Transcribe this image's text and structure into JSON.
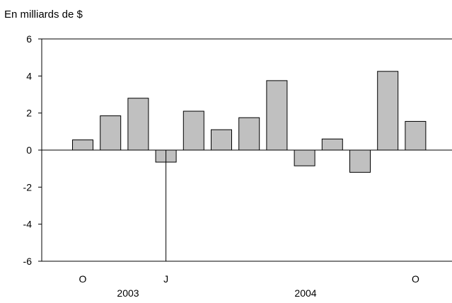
{
  "chart_data": {
    "type": "bar",
    "unit_label": "En milliards de $",
    "categories": [
      "2003-10",
      "2003-11",
      "2003-12",
      "2004-01",
      "2004-02",
      "2004-03",
      "2004-04",
      "2004-05",
      "2004-06",
      "2004-07",
      "2004-08",
      "2004-09",
      "2004-10"
    ],
    "values": [
      0.55,
      1.85,
      2.8,
      -0.65,
      2.1,
      1.1,
      1.75,
      3.75,
      -0.85,
      0.6,
      -1.2,
      4.25,
      1.55
    ],
    "ylim": [
      -6,
      6
    ],
    "yticks": [
      "6",
      "4",
      "2",
      "0",
      "-2",
      "-4",
      "-6"
    ],
    "x_month_labels": [
      {
        "index": 0,
        "text": "O"
      },
      {
        "index": 3,
        "text": "J"
      },
      {
        "index": 12,
        "text": "O"
      }
    ],
    "x_year_labels": [
      {
        "text": "2003"
      },
      {
        "text": "2004"
      }
    ],
    "year_divider_before_index": 3,
    "colors": {
      "bar_fill": "#c0c0c0",
      "bar_stroke": "#000000",
      "axis": "#000000"
    },
    "grid": false,
    "legend": "none"
  }
}
